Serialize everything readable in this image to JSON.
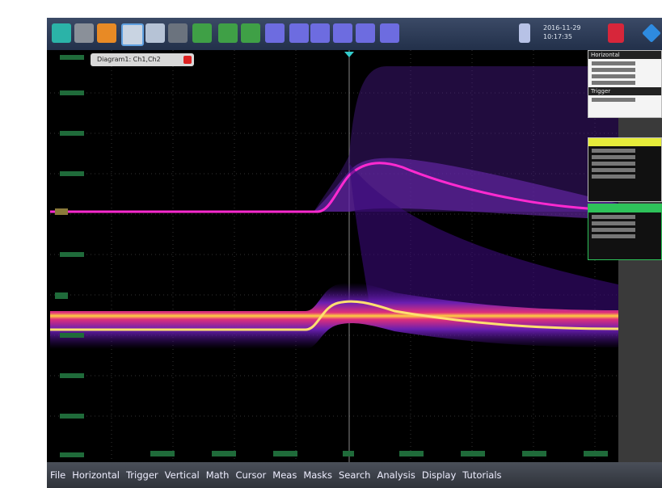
{
  "toolbar": {
    "date": "2016-11-29",
    "time": "10:17:35"
  },
  "diagram_tab": "Diagram1: Ch1,Ch2",
  "side_panels": [
    {
      "title": "Horizontal"
    },
    {
      "title": "Trigger"
    }
  ],
  "menu": [
    "File",
    "Horizontal",
    "Trigger",
    "Vertical",
    "Math",
    "Cursor",
    "Meas",
    "Masks",
    "Search",
    "Analysis",
    "Display",
    "Tutorials"
  ]
}
